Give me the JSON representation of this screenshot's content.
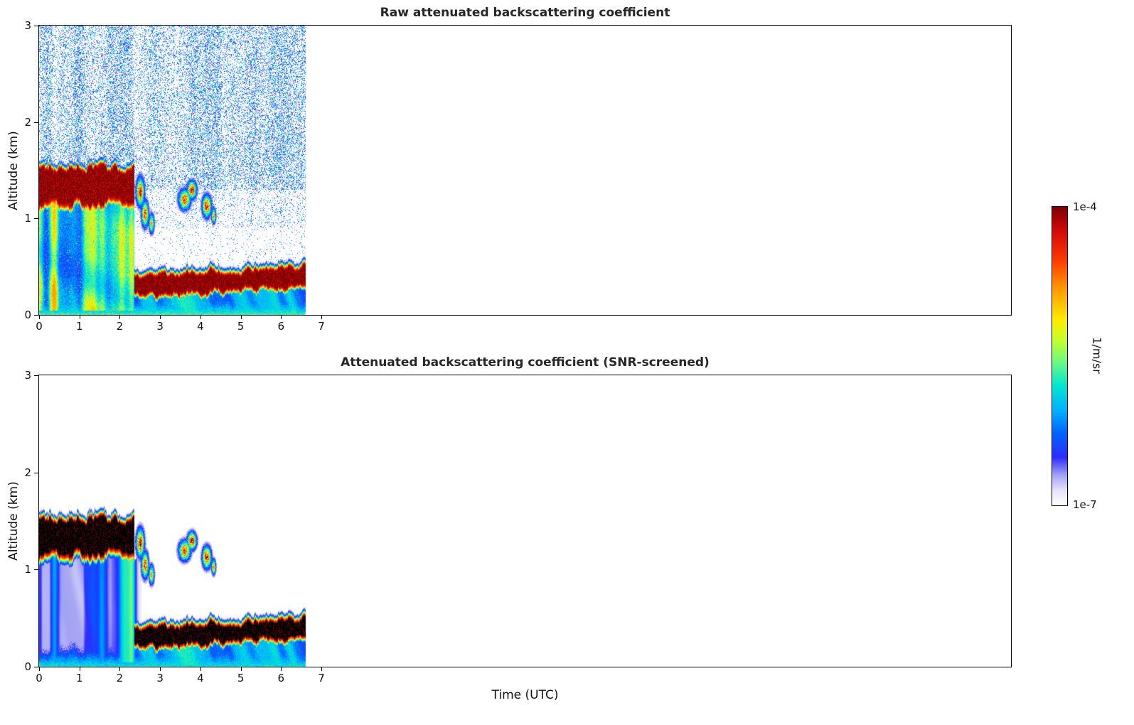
{
  "figure": {
    "xlabel": "Time (UTC)",
    "background": "#ffffff"
  },
  "colorbar": {
    "units": "1/m/sr",
    "max_label": "1e-4",
    "min_label": "1e-7",
    "scale": "log",
    "stops": [
      [
        0.0,
        255,
        255,
        255
      ],
      [
        0.05,
        231,
        227,
        250
      ],
      [
        0.1,
        163,
        163,
        244
      ],
      [
        0.16,
        45,
        45,
        255
      ],
      [
        0.24,
        0,
        100,
        255
      ],
      [
        0.32,
        0,
        180,
        255
      ],
      [
        0.4,
        0,
        230,
        210
      ],
      [
        0.48,
        110,
        250,
        130
      ],
      [
        0.55,
        195,
        255,
        45
      ],
      [
        0.62,
        255,
        238,
        0
      ],
      [
        0.72,
        255,
        160,
        0
      ],
      [
        0.82,
        255,
        60,
        0
      ],
      [
        0.92,
        213,
        10,
        10
      ],
      [
        1.0,
        126,
        0,
        0
      ]
    ]
  },
  "chart_data": [
    {
      "type": "heatmap",
      "title": "Raw attenuated backscattering coefficient",
      "ylabel": "Altitude (km)",
      "xlim": [
        0,
        24.1
      ],
      "ylim": [
        0,
        3
      ],
      "xticks": [
        0,
        1,
        2,
        3,
        4,
        5,
        6,
        7
      ],
      "yticks": [
        0,
        1,
        2,
        3
      ],
      "units": "1/m/sr",
      "value_range": [
        "1e-7",
        "1e-4"
      ],
      "data_extent_hours": [
        0,
        6.6
      ],
      "features": {
        "mode": "raw",
        "t_max": 6.6,
        "elevated_layer": {
          "t_start": 0,
          "t_end": 2.35,
          "z_bottom": 1.18,
          "z_top": 1.52,
          "edge_jitter": 0.1
        },
        "low_layer": {
          "t_start": 2.35,
          "t_end": 6.6,
          "z_center_start": 0.3,
          "z_center_end": 0.4,
          "half_width": 0.085,
          "jitter": 0.05
        },
        "surface": {
          "z_top": 0.14,
          "strength": 0.42
        },
        "cloud_patches": [
          [
            2.5,
            1.28,
            0.09,
            0.13,
            0.9
          ],
          [
            2.62,
            1.05,
            0.08,
            0.12,
            0.85
          ],
          [
            2.78,
            0.95,
            0.06,
            0.09,
            0.7
          ],
          [
            3.6,
            1.2,
            0.13,
            0.09,
            0.88
          ],
          [
            3.78,
            1.3,
            0.1,
            0.08,
            0.95
          ],
          [
            4.15,
            1.13,
            0.1,
            0.1,
            0.9
          ],
          [
            4.32,
            1.03,
            0.05,
            0.07,
            0.75
          ]
        ],
        "precip_streaks": [
          [
            0.4,
            0.08,
            0.18
          ],
          [
            1.55,
            0.12,
            0.22
          ],
          [
            2.12,
            0.16,
            0.38
          ],
          [
            2.3,
            0.09,
            0.32
          ]
        ],
        "noise": {
          "p_high": 0.32,
          "p_mid": 0.12,
          "p_low": 0.04,
          "z_mid": 1.3,
          "z_low": 0.9
        }
      }
    },
    {
      "type": "heatmap",
      "title": "Attenuated backscattering coefficient (SNR-screened)",
      "ylabel": "Altitude (km)",
      "xlim": [
        0,
        24.1
      ],
      "ylim": [
        0,
        3
      ],
      "xticks": [
        0,
        1,
        2,
        3,
        4,
        5,
        6,
        7
      ],
      "yticks": [
        0,
        1,
        2,
        3
      ],
      "units": "1/m/sr",
      "value_range": [
        "1e-7",
        "1e-4"
      ],
      "data_extent_hours": [
        0,
        6.6
      ],
      "features": {
        "mode": "screened",
        "t_max": 6.6,
        "elevated_layer": {
          "t_start": 0,
          "t_end": 2.35,
          "z_bottom": 1.18,
          "z_top": 1.52,
          "edge_jitter": 0.1
        },
        "low_layer": {
          "t_start": 2.35,
          "t_end": 6.6,
          "z_center_start": 0.3,
          "z_center_end": 0.4,
          "half_width": 0.085,
          "jitter": 0.05
        },
        "surface": {
          "z_top": 0.14,
          "strength": 0.38
        },
        "cloud_patches": [
          [
            2.5,
            1.28,
            0.09,
            0.13,
            0.9
          ],
          [
            2.62,
            1.05,
            0.08,
            0.12,
            0.85
          ],
          [
            2.78,
            0.95,
            0.06,
            0.09,
            0.7
          ],
          [
            3.6,
            1.2,
            0.13,
            0.09,
            0.88
          ],
          [
            3.78,
            1.3,
            0.1,
            0.08,
            0.95
          ],
          [
            4.15,
            1.13,
            0.1,
            0.1,
            0.9
          ],
          [
            4.32,
            1.03,
            0.05,
            0.07,
            0.75
          ]
        ],
        "precip_streaks": [
          [
            0.4,
            0.08,
            0.18
          ],
          [
            1.55,
            0.12,
            0.22
          ],
          [
            2.12,
            0.16,
            0.38
          ],
          [
            2.3,
            0.09,
            0.32
          ]
        ]
      }
    }
  ]
}
